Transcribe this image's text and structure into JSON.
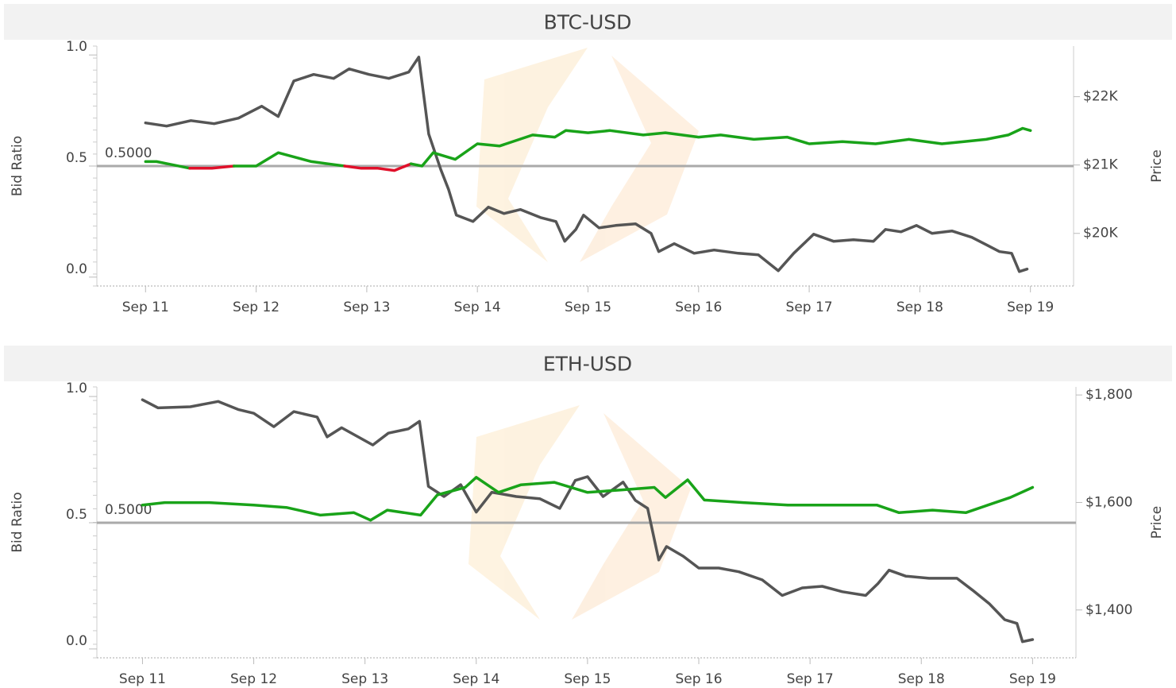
{
  "chart_data": [
    {
      "type": "line",
      "title": "BTC-USD",
      "ylabel": "Bid Ratio",
      "y2label": "Price",
      "xlim": [
        10.56,
        19.39
      ],
      "xticks": [
        {
          "value": 11,
          "label": "Sep 11"
        },
        {
          "value": 12,
          "label": "Sep 12"
        },
        {
          "value": 13,
          "label": "Sep 13"
        },
        {
          "value": 14,
          "label": "Sep 14"
        },
        {
          "value": 15,
          "label": "Sep 15"
        },
        {
          "value": 16,
          "label": "Sep 16"
        },
        {
          "value": 17,
          "label": "Sep 17"
        },
        {
          "value": 18,
          "label": "Sep 18"
        },
        {
          "value": 19,
          "label": "Sep 19"
        }
      ],
      "ylim": [
        -0.04,
        1.04
      ],
      "yticks": [
        {
          "value": 0,
          "label": "0.0"
        },
        0.5,
        {
          "value": 1,
          "label": "1.0"
        }
      ],
      "y2lim": [
        19230,
        22740
      ],
      "y2ticks": [
        {
          "value": 20000,
          "label": "$20K"
        },
        {
          "value": 21000,
          "label": "$21K"
        },
        {
          "value": 22000,
          "label": "$22K"
        }
      ],
      "reference_line": {
        "value": 0.5,
        "label": "0.5000"
      },
      "series": [
        {
          "color": "#555555",
          "axis": "y2",
          "x": [
            11.0,
            11.19,
            11.41,
            11.62,
            11.84,
            12.05,
            12.2,
            12.34,
            12.52,
            12.7,
            12.84,
            13.02,
            13.2,
            13.38,
            13.47,
            13.56,
            13.67,
            13.74,
            13.81,
            13.96,
            14.1,
            14.24,
            14.39,
            14.57,
            14.71,
            14.79,
            14.89,
            14.96,
            15.1,
            15.25,
            15.43,
            15.57,
            15.64,
            15.78,
            15.96,
            16.14,
            16.36,
            16.54,
            16.72,
            16.86,
            17.04,
            17.22,
            17.4,
            17.58,
            17.69,
            17.83,
            17.97,
            18.11,
            18.29,
            18.47,
            18.61,
            18.72,
            18.83,
            18.9,
            18.97
          ],
          "values": [
            21616,
            21570,
            21650,
            21605,
            21686,
            21860,
            21710,
            22230,
            22325,
            22267,
            22407,
            22325,
            22267,
            22360,
            22580,
            21453,
            20930,
            20640,
            20267,
            20174,
            20384,
            20290,
            20349,
            20232,
            20174,
            19884,
            20058,
            20267,
            20081,
            20116,
            20140,
            20000,
            19733,
            19849,
            19709,
            19756,
            19709,
            19686,
            19453,
            19709,
            19988,
            19884,
            19907,
            19884,
            20058,
            20023,
            20116,
            20000,
            20035,
            19942,
            19826,
            19733,
            19709,
            19442,
            19477
          ]
        },
        {
          "color": "#19a319",
          "below_color": "#e0102a",
          "x": [
            11.0,
            11.1,
            11.2,
            11.4,
            11.6,
            11.8,
            12.0,
            12.2,
            12.35,
            12.5,
            12.65,
            12.8,
            12.95,
            13.1,
            13.25,
            13.4,
            13.5,
            13.6,
            13.8,
            14.0,
            14.2,
            14.5,
            14.7,
            14.8,
            15.0,
            15.2,
            15.5,
            15.7,
            16.0,
            16.2,
            16.5,
            16.8,
            17.0,
            17.3,
            17.6,
            17.9,
            18.2,
            18.4,
            18.6,
            18.8,
            18.93,
            19.0
          ],
          "values": [
            0.52,
            0.52,
            0.51,
            0.49,
            0.49,
            0.5,
            0.5,
            0.56,
            0.54,
            0.52,
            0.51,
            0.5,
            0.49,
            0.49,
            0.48,
            0.51,
            0.5,
            0.56,
            0.53,
            0.6,
            0.59,
            0.64,
            0.63,
            0.66,
            0.65,
            0.66,
            0.64,
            0.65,
            0.63,
            0.64,
            0.62,
            0.63,
            0.6,
            0.61,
            0.6,
            0.62,
            0.6,
            0.61,
            0.62,
            0.64,
            0.67,
            0.66
          ]
        }
      ]
    },
    {
      "type": "line",
      "title": "ETH-USD",
      "ylabel": "Bid Ratio",
      "y2label": "Price",
      "xlim": [
        10.59,
        19.39
      ],
      "xticks": [
        {
          "value": 11,
          "label": "Sep 11"
        },
        {
          "value": 12,
          "label": "Sep 12"
        },
        {
          "value": 13,
          "label": "Sep 13"
        },
        {
          "value": 14,
          "label": "Sep 14"
        },
        {
          "value": 15,
          "label": "Sep 15"
        },
        {
          "value": 16,
          "label": "Sep 16"
        },
        {
          "value": 17,
          "label": "Sep 17"
        },
        {
          "value": 18,
          "label": "Sep 18"
        },
        {
          "value": 19,
          "label": "Sep 19"
        }
      ],
      "ylim": [
        -0.035,
        1.038
      ],
      "yticks": [
        {
          "value": 0,
          "label": "0.0"
        },
        0.5,
        {
          "value": 1,
          "label": "1.0"
        }
      ],
      "y2lim": [
        1311,
        1815
      ],
      "y2ticks": [
        {
          "value": 1400,
          "label": "$1,400"
        },
        {
          "value": 1600,
          "label": "$1,600"
        },
        {
          "value": 1800,
          "label": "$1,800"
        }
      ],
      "reference_line": {
        "value": 0.5,
        "label": "0.5000"
      },
      "series": [
        {
          "color": "#555555",
          "axis": "y2",
          "x": [
            11.0,
            11.14,
            11.43,
            11.68,
            11.86,
            12.0,
            12.18,
            12.36,
            12.57,
            12.66,
            12.79,
            13.07,
            13.21,
            13.39,
            13.49,
            13.57,
            13.71,
            13.86,
            14.0,
            14.14,
            14.36,
            14.57,
            14.75,
            14.89,
            15.0,
            15.14,
            15.32,
            15.43,
            15.54,
            15.64,
            15.71,
            15.86,
            16.0,
            16.18,
            16.36,
            16.57,
            16.75,
            16.93,
            17.11,
            17.29,
            17.5,
            17.61,
            17.71,
            17.86,
            18.07,
            18.32,
            18.46,
            18.61,
            18.75,
            18.86,
            18.91,
            19.0
          ],
          "values": [
            1791,
            1776,
            1778,
            1788,
            1773,
            1766,
            1741,
            1769,
            1759,
            1722,
            1739,
            1707,
            1729,
            1737,
            1751,
            1630,
            1611,
            1633,
            1582,
            1619,
            1611,
            1607,
            1589,
            1641,
            1648,
            1611,
            1638,
            1604,
            1589,
            1493,
            1518,
            1500,
            1478,
            1478,
            1471,
            1456,
            1427,
            1441,
            1444,
            1434,
            1427,
            1449,
            1474,
            1463,
            1459,
            1459,
            1437,
            1412,
            1382,
            1375,
            1341,
            1345
          ]
        },
        {
          "color": "#19a319",
          "below_color": "#e0102a",
          "x": [
            11.0,
            11.2,
            11.6,
            12.0,
            12.3,
            12.6,
            12.9,
            13.05,
            13.2,
            13.5,
            13.65,
            13.9,
            14.0,
            14.2,
            14.4,
            14.7,
            15.0,
            15.3,
            15.6,
            15.7,
            15.9,
            16.05,
            16.4,
            16.8,
            17.2,
            17.6,
            17.8,
            18.1,
            18.4,
            18.6,
            18.8,
            19.0
          ],
          "values": [
            0.57,
            0.58,
            0.58,
            0.57,
            0.56,
            0.53,
            0.54,
            0.51,
            0.55,
            0.53,
            0.61,
            0.64,
            0.68,
            0.62,
            0.65,
            0.66,
            0.62,
            0.63,
            0.64,
            0.6,
            0.67,
            0.59,
            0.58,
            0.57,
            0.57,
            0.57,
            0.54,
            0.55,
            0.54,
            0.57,
            0.6,
            0.64
          ]
        }
      ]
    }
  ]
}
